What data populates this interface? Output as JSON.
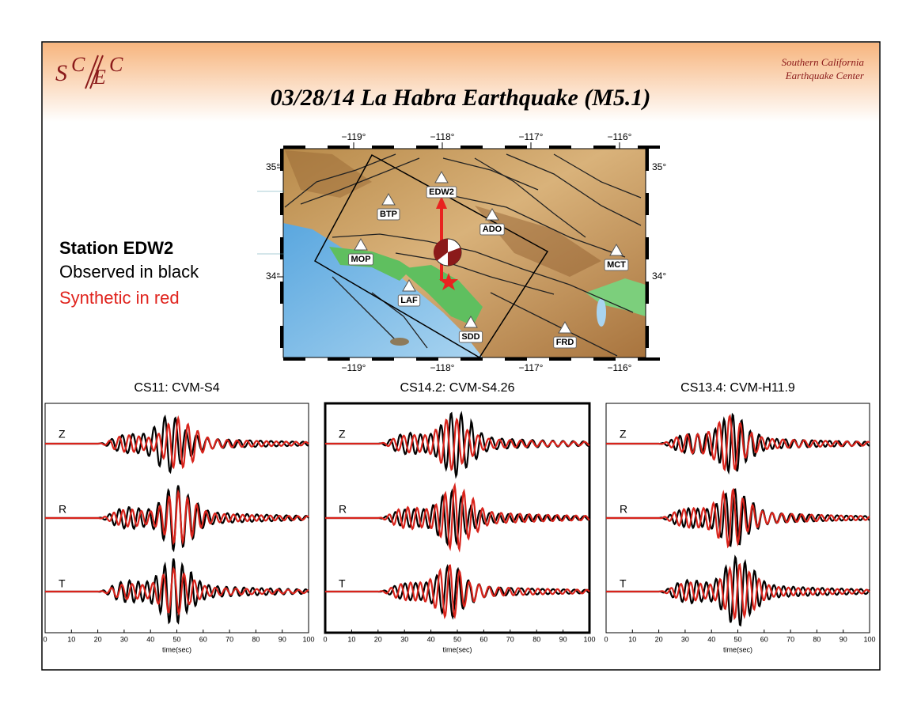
{
  "header": {
    "logo_letters": [
      "S",
      "C",
      "E",
      "C"
    ],
    "organization": [
      "Southern California",
      "Earthquake Center"
    ],
    "title": "03/28/14 La Habra Earthquake (M5.1)"
  },
  "map": {
    "lon_ticks": [
      {
        "value": -119,
        "label": "−119°"
      },
      {
        "value": -118,
        "label": "−118°"
      },
      {
        "value": -117,
        "label": "−117°"
      },
      {
        "value": -116,
        "label": "−116°"
      }
    ],
    "lat_ticks": [
      {
        "value": 35,
        "label": "35°"
      },
      {
        "value": 34,
        "label": "34°"
      }
    ],
    "stations": [
      "EDW2",
      "BTP",
      "ADO",
      "MOP",
      "MCT",
      "LAF",
      "SDD",
      "FRD"
    ]
  },
  "legend": {
    "station": "Station EDW2",
    "observed": "Observed in black",
    "synthetic": "Synthetic in red"
  },
  "panels": [
    {
      "title": "CS11: CVM-S4",
      "components": [
        "Z",
        "R",
        "T"
      ],
      "xlim": [
        0,
        100
      ],
      "xticks": [
        0,
        10,
        20,
        30,
        40,
        50,
        60,
        70,
        80,
        90,
        100
      ],
      "xlabel": "time(sec)"
    },
    {
      "title": "CS14.2: CVM-S4.26",
      "components": [
        "Z",
        "R",
        "T"
      ],
      "xlim": [
        0,
        100
      ],
      "xticks": [
        0,
        10,
        20,
        30,
        40,
        50,
        60,
        70,
        80,
        90,
        100
      ],
      "xlabel": "time(sec)"
    },
    {
      "title": "CS13.4: CVM-H11.9",
      "components": [
        "Z",
        "R",
        "T"
      ],
      "xlim": [
        0,
        100
      ],
      "xticks": [
        0,
        10,
        20,
        30,
        40,
        50,
        60,
        70,
        80,
        90,
        100
      ],
      "xlabel": "time(sec)"
    }
  ]
}
